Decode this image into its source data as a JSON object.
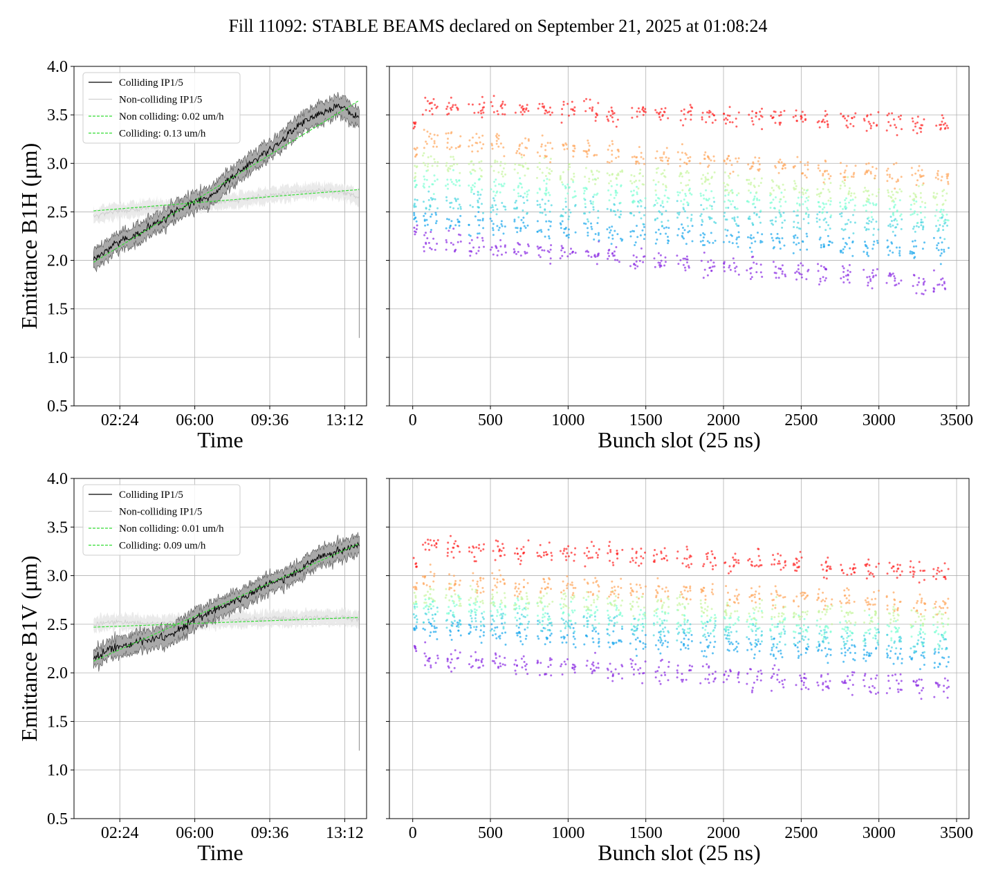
{
  "title": "Fill 11092: STABLE BEAMS declared on September 21, 2025 at 01:08:24",
  "colors": {
    "colliding": "#000000",
    "colliding_band": "#808080",
    "non_colliding": "#d0d0d0",
    "fit": "#33dd33"
  },
  "chart_data": [
    {
      "type": "line",
      "name": "B1H time evolution",
      "xlabel": "Time",
      "ylabel": "Emittance B1H (μm)",
      "ylim": [
        0.5,
        4.0
      ],
      "yticks": [
        "0.5",
        "1.0",
        "1.5",
        "2.0",
        "2.5",
        "3.0",
        "3.5",
        "4.0"
      ],
      "xticks": [
        "02:24",
        "06:00",
        "09:36",
        "13:12"
      ],
      "xtick_hours": [
        2.4,
        6.0,
        9.6,
        13.2
      ],
      "xlim_hours": [
        0.2,
        14.25
      ],
      "grid": true,
      "legend_position": "top-left",
      "legend": [
        "Colliding IP1/5",
        "Non-colliding IP1/5",
        "Non colliding: 0.02 um/h",
        "Colliding: 0.13 um/h"
      ],
      "series": [
        {
          "name": "Colliding IP1/5",
          "x_hours": [
            1.14,
            2.0,
            3.0,
            4.0,
            5.0,
            6.0,
            7.0,
            8.0,
            9.0,
            10.0,
            11.0,
            12.0,
            13.0,
            13.5,
            13.9
          ],
          "y": [
            2.0,
            2.15,
            2.25,
            2.35,
            2.5,
            2.6,
            2.7,
            2.9,
            3.05,
            3.2,
            3.4,
            3.5,
            3.6,
            3.5,
            3.5
          ]
        },
        {
          "name": "Non-colliding IP1/5",
          "x_hours": [
            1.14,
            2.0,
            3.0,
            4.0,
            5.0,
            6.0,
            7.0,
            8.0,
            9.0,
            10.0,
            11.0,
            12.0,
            13.0,
            13.5,
            13.9
          ],
          "y": [
            2.45,
            2.5,
            2.52,
            2.55,
            2.55,
            2.58,
            2.6,
            2.62,
            2.65,
            2.68,
            2.7,
            2.72,
            2.7,
            2.68,
            2.65
          ]
        },
        {
          "name": "Non colliding: 0.02 um/h",
          "x_hours": [
            1.14,
            13.9
          ],
          "y": [
            2.51,
            2.73
          ]
        },
        {
          "name": "Colliding: 0.13 um/h",
          "x_hours": [
            1.14,
            13.9
          ],
          "y": [
            1.98,
            3.65
          ]
        }
      ]
    },
    {
      "type": "scatter",
      "name": "B1H bunch-by-bunch",
      "xlabel": "Bunch slot (25 ns)",
      "ylabel": "",
      "xlim": [
        -150,
        3580
      ],
      "ylim": [
        0.5,
        4.0
      ],
      "xticks": [
        "0",
        "500",
        "1000",
        "1500",
        "2000",
        "2500",
        "3000",
        "3500"
      ],
      "grid": true,
      "trains_start": [
        65,
        210,
        360,
        500,
        650,
        800,
        950,
        1100,
        1250,
        1400,
        1550,
        1700,
        1850,
        2000,
        2150,
        2300,
        2450,
        2600,
        2750,
        2900,
        3050,
        3200,
        3350
      ],
      "train_length": 100,
      "levels_start": [
        2.2,
        2.4,
        2.6,
        2.8,
        3.0,
        3.25,
        3.6
      ],
      "levels_end": [
        1.75,
        2.1,
        2.35,
        2.5,
        2.65,
        2.85,
        3.4
      ],
      "level_colors": [
        "#8a2be2",
        "#1aa7ec",
        "#4cd6e0",
        "#7fffd4",
        "#c8f5a0",
        "#ffa65c",
        "#ff2222"
      ]
    },
    {
      "type": "line",
      "name": "B1V time evolution",
      "xlabel": "Time",
      "ylabel": "Emittance B1V (μm)",
      "ylim": [
        0.5,
        4.0
      ],
      "yticks": [
        "0.5",
        "1.0",
        "1.5",
        "2.0",
        "2.5",
        "3.0",
        "3.5",
        "4.0"
      ],
      "xticks": [
        "02:24",
        "06:00",
        "09:36",
        "13:12"
      ],
      "xtick_hours": [
        2.4,
        6.0,
        9.6,
        13.2
      ],
      "xlim_hours": [
        0.2,
        14.25
      ],
      "grid": true,
      "legend_position": "top-left",
      "legend": [
        "Colliding IP1/5",
        "Non-colliding IP1/5",
        "Non colliding: 0.01 um/h",
        "Colliding: 0.09 um/h"
      ],
      "series": [
        {
          "name": "Colliding IP1/5",
          "x_hours": [
            1.14,
            2.0,
            3.0,
            4.0,
            5.0,
            6.0,
            7.0,
            8.0,
            9.0,
            10.0,
            11.0,
            12.0,
            13.0,
            13.5,
            13.9
          ],
          "y": [
            2.15,
            2.25,
            2.3,
            2.35,
            2.4,
            2.55,
            2.65,
            2.75,
            2.85,
            2.95,
            3.05,
            3.2,
            3.25,
            3.3,
            3.3
          ]
        },
        {
          "name": "Non-colliding IP1/5",
          "x_hours": [
            1.14,
            2.0,
            3.0,
            4.0,
            5.0,
            6.0,
            7.0,
            8.0,
            9.0,
            10.0,
            11.0,
            12.0,
            13.0,
            13.5,
            13.9
          ],
          "y": [
            2.5,
            2.52,
            2.52,
            2.5,
            2.52,
            2.53,
            2.53,
            2.55,
            2.55,
            2.56,
            2.56,
            2.57,
            2.57,
            2.56,
            2.55
          ]
        },
        {
          "name": "Non colliding: 0.01 um/h",
          "x_hours": [
            1.14,
            13.9
          ],
          "y": [
            2.47,
            2.57
          ]
        },
        {
          "name": "Colliding: 0.09 um/h",
          "x_hours": [
            1.14,
            13.9
          ],
          "y": [
            2.12,
            3.33
          ]
        }
      ]
    },
    {
      "type": "scatter",
      "name": "B1V bunch-by-bunch",
      "xlabel": "Bunch slot (25 ns)",
      "ylabel": "",
      "xlim": [
        -150,
        3580
      ],
      "ylim": [
        0.5,
        4.0
      ],
      "xticks": [
        "0",
        "500",
        "1000",
        "1500",
        "2000",
        "2500",
        "3000",
        "3500"
      ],
      "grid": true,
      "trains_start": [
        65,
        210,
        360,
        500,
        650,
        800,
        950,
        1100,
        1250,
        1400,
        1550,
        1700,
        1850,
        2000,
        2150,
        2300,
        2450,
        2600,
        2750,
        2900,
        3050,
        3200,
        3350
      ],
      "train_length": 100,
      "levels_start": [
        2.15,
        2.45,
        2.6,
        2.7,
        2.8,
        2.95,
        3.3
      ],
      "levels_end": [
        1.85,
        2.15,
        2.3,
        2.4,
        2.55,
        2.7,
        3.05
      ],
      "level_colors": [
        "#8a2be2",
        "#1aa7ec",
        "#4cd6e0",
        "#7fffd4",
        "#c8f5a0",
        "#ffa65c",
        "#ff2222"
      ]
    }
  ]
}
